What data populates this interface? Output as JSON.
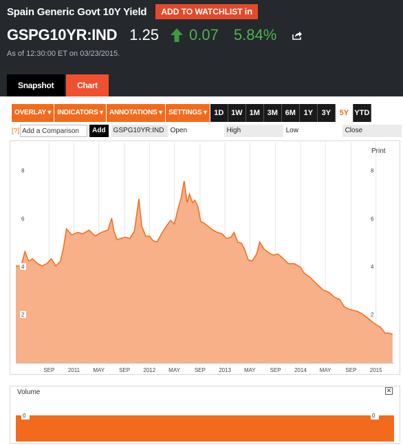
{
  "header": {
    "title": "Spain Generic Govt 10Y Yield",
    "watchlist_label": "ADD TO WATCHLIST",
    "watchlist_icon": "in",
    "ticker": "GSPG10YR:IND",
    "price": "1.25",
    "change": "0.07",
    "change_pct": "5.84%",
    "as_of": "As of 12:30:00 ET on 03/23/2015.",
    "up_color": "#4fb34f"
  },
  "tabs": [
    {
      "label": "Snapshot"
    },
    {
      "label": "Chart"
    }
  ],
  "toolbar": {
    "menus": [
      {
        "label": "OVERLAY ▾"
      },
      {
        "label": "INDICATORS ▾"
      },
      {
        "label": "ANNOTATIONS ▾"
      },
      {
        "label": "SETTINGS ▾"
      }
    ],
    "ranges": [
      {
        "label": "1D"
      },
      {
        "label": "1W"
      },
      {
        "label": "1M"
      },
      {
        "label": "3M"
      },
      {
        "label": "6M"
      },
      {
        "label": "1Y"
      },
      {
        "label": "3Y"
      },
      {
        "label": "5Y"
      },
      {
        "label": "YTD"
      }
    ],
    "active_range": "5Y"
  },
  "compare": {
    "help": "[?]",
    "placeholder": "Add a Comparison",
    "add_label": "Add",
    "ticker": "GSPG10YR:IND",
    "open_label": "Open",
    "high_label": "High",
    "low_label": "Low",
    "close_label": "Close"
  },
  "chart": {
    "print_label": "Print",
    "volume_label": "Volume",
    "close_icon": "✕",
    "volume_tick": "0"
  },
  "chart_data": {
    "type": "area",
    "title": "",
    "xlabel": "",
    "ylabel": "",
    "ylim": [
      0,
      9.2
    ],
    "y_ticks": [
      2,
      4,
      6,
      8
    ],
    "x_ticks": [
      {
        "label": "SEP",
        "t": 2010.67
      },
      {
        "label": "2011",
        "t": 2011.0
      },
      {
        "label": "MAY",
        "t": 2011.33
      },
      {
        "label": "SEP",
        "t": 2011.67
      },
      {
        "label": "2012",
        "t": 2012.0
      },
      {
        "label": "MAY",
        "t": 2012.33
      },
      {
        "label": "SEP",
        "t": 2012.67
      },
      {
        "label": "2013",
        "t": 2013.0
      },
      {
        "label": "MAY",
        "t": 2013.33
      },
      {
        "label": "SEP",
        "t": 2013.67
      },
      {
        "label": "2014",
        "t": 2014.0
      },
      {
        "label": "MAY",
        "t": 2014.33
      },
      {
        "label": "SEP",
        "t": 2014.67
      },
      {
        "label": "2015",
        "t": 2015.0
      }
    ],
    "xlim": [
      2010.23,
      2015.24
    ],
    "fill_color": "#f8b088",
    "line_color": "#f26b1d",
    "series": [
      {
        "points": [
          [
            2010.23,
            4.05
          ],
          [
            2010.3,
            4.05
          ],
          [
            2010.35,
            4.65
          ],
          [
            2010.4,
            4.25
          ],
          [
            2010.45,
            4.35
          ],
          [
            2010.52,
            4.15
          ],
          [
            2010.58,
            4.05
          ],
          [
            2010.64,
            4.15
          ],
          [
            2010.7,
            4.35
          ],
          [
            2010.76,
            4.05
          ],
          [
            2010.82,
            4.25
          ],
          [
            2010.86,
            4.8
          ],
          [
            2010.9,
            5.6
          ],
          [
            2010.97,
            5.35
          ],
          [
            2011.05,
            5.45
          ],
          [
            2011.12,
            5.4
          ],
          [
            2011.2,
            5.55
          ],
          [
            2011.28,
            5.3
          ],
          [
            2011.36,
            5.45
          ],
          [
            2011.45,
            5.55
          ],
          [
            2011.5,
            6.05
          ],
          [
            2011.53,
            5.5
          ],
          [
            2011.57,
            5.15
          ],
          [
            2011.62,
            5.2
          ],
          [
            2011.68,
            5.25
          ],
          [
            2011.74,
            5.2
          ],
          [
            2011.8,
            5.5
          ],
          [
            2011.86,
            6.85
          ],
          [
            2011.9,
            5.7
          ],
          [
            2011.95,
            5.3
          ],
          [
            2012.0,
            5.3
          ],
          [
            2012.05,
            5.1
          ],
          [
            2012.1,
            5.05
          ],
          [
            2012.16,
            5.4
          ],
          [
            2012.22,
            5.7
          ],
          [
            2012.28,
            5.95
          ],
          [
            2012.33,
            5.8
          ],
          [
            2012.38,
            6.45
          ],
          [
            2012.42,
            6.9
          ],
          [
            2012.46,
            7.6
          ],
          [
            2012.5,
            6.7
          ],
          [
            2012.53,
            7.05
          ],
          [
            2012.57,
            6.7
          ],
          [
            2012.6,
            6.8
          ],
          [
            2012.64,
            6.55
          ],
          [
            2012.68,
            5.9
          ],
          [
            2012.72,
            5.85
          ],
          [
            2012.78,
            5.7
          ],
          [
            2012.84,
            5.55
          ],
          [
            2012.9,
            5.45
          ],
          [
            2012.96,
            5.4
          ],
          [
            2013.02,
            5.2
          ],
          [
            2013.08,
            5.25
          ],
          [
            2013.12,
            5.45
          ],
          [
            2013.17,
            5.05
          ],
          [
            2013.22,
            5.0
          ],
          [
            2013.26,
            4.75
          ],
          [
            2013.31,
            4.3
          ],
          [
            2013.36,
            4.25
          ],
          [
            2013.42,
            4.55
          ],
          [
            2013.46,
            5.05
          ],
          [
            2013.52,
            4.75
          ],
          [
            2013.58,
            4.6
          ],
          [
            2013.64,
            4.5
          ],
          [
            2013.7,
            4.55
          ],
          [
            2013.76,
            4.4
          ],
          [
            2013.84,
            4.15
          ],
          [
            2013.92,
            4.15
          ],
          [
            2014.0,
            4.0
          ],
          [
            2014.05,
            3.75
          ],
          [
            2014.12,
            3.6
          ],
          [
            2014.2,
            3.35
          ],
          [
            2014.3,
            3.05
          ],
          [
            2014.38,
            2.95
          ],
          [
            2014.45,
            2.75
          ],
          [
            2014.52,
            2.65
          ],
          [
            2014.58,
            2.35
          ],
          [
            2014.64,
            2.25
          ],
          [
            2014.7,
            2.2
          ],
          [
            2014.76,
            2.15
          ],
          [
            2014.82,
            2.05
          ],
          [
            2014.88,
            1.9
          ],
          [
            2014.94,
            1.75
          ],
          [
            2015.0,
            1.6
          ],
          [
            2015.06,
            1.5
          ],
          [
            2015.12,
            1.25
          ],
          [
            2015.18,
            1.25
          ],
          [
            2015.22,
            1.2
          ]
        ]
      }
    ]
  }
}
